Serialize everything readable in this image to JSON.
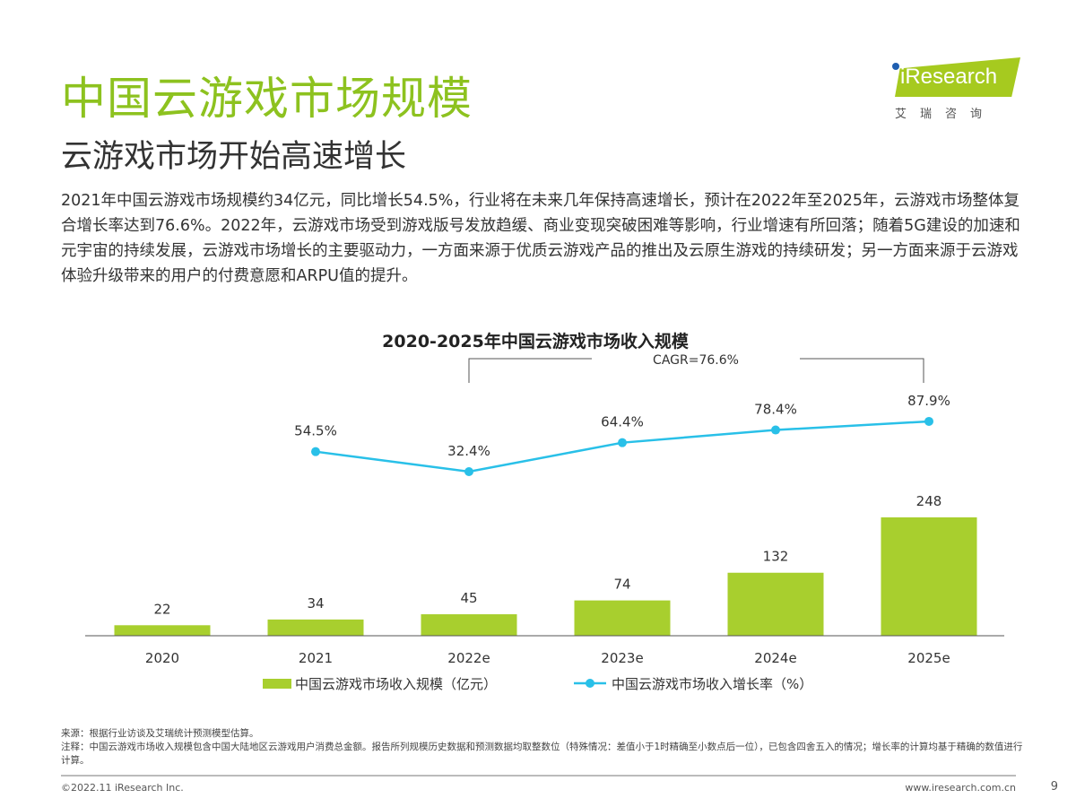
{
  "header": {
    "title": "中国云游戏市场规模",
    "subtitle": "云游戏市场开始高速增长"
  },
  "logo": {
    "text": "iResearch",
    "cn": "艾瑞咨询"
  },
  "body": "2021年中国云游戏市场规模约34亿元，同比增长54.5%，行业将在未来几年保持高速增长，预计在2022年至2025年，云游戏市场整体复合增长率达到76.6%。2022年，云游戏市场受到游戏版号发放趋缓、商业变现突破困难等影响，行业增速有所回落；随着5G建设的加速和元宇宙的持续发展，云游戏市场增长的主要驱动力，一方面来源于优质云游戏产品的推出及云原生游戏的持续研发；另一方面来源于云游戏体验升级带来的用户的付费意愿和ARPU值的提升。",
  "chart_data": {
    "type": "bar+line",
    "title": "2020-2025年中国云游戏市场收入规模",
    "categories": [
      "2020",
      "2021",
      "2022e",
      "2023e",
      "2024e",
      "2025e"
    ],
    "series": [
      {
        "name": "中国云游戏市场收入规模（亿元）",
        "type": "bar",
        "color": "#a8cf2e",
        "values": [
          22,
          34,
          45,
          74,
          132,
          248
        ]
      },
      {
        "name": "中国云游戏市场收入增长率（%）",
        "type": "line",
        "color": "#29c0e8",
        "values": [
          null,
          54.5,
          32.4,
          64.4,
          78.4,
          87.9
        ],
        "labels": [
          "",
          "54.5%",
          "32.4%",
          "64.4%",
          "78.4%",
          "87.9%"
        ]
      }
    ],
    "annotation": "CAGR=76.6%",
    "legend": "bottom",
    "grid": false
  },
  "notes": {
    "source": "来源：根据行业访谈及艾瑞统计预测模型估算。",
    "note": "注释：中国云游戏市场收入规模包含中国大陆地区云游戏用户消费总金额。报告所列规模历史数据和预测数据均取整数位（特殊情况：差值小于1时精确至小数点后一位），已包含四舍五入的情况；增长率的计算均基于精确的数值进行计算。"
  },
  "footer": {
    "copyright": "©2022.11 iResearch Inc.",
    "url": "www.iresearch.com.cn",
    "page": "9"
  }
}
